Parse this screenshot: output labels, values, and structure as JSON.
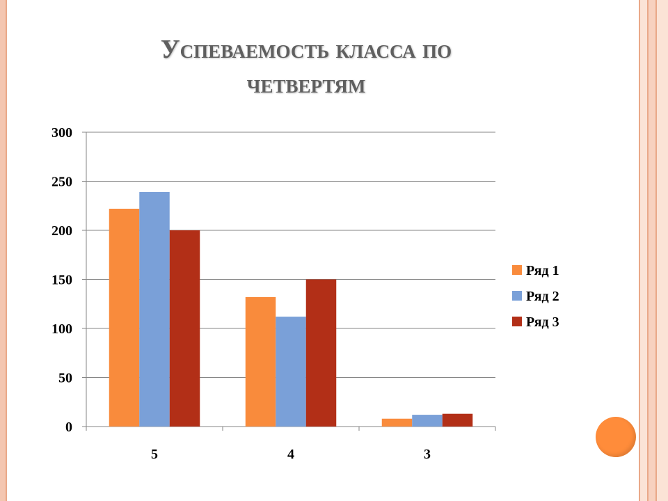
{
  "slide": {
    "title": "Успеваемость класса по четвертям",
    "accent_color": "#ff8c3a"
  },
  "chart_data": {
    "type": "bar",
    "title": "",
    "xlabel": "",
    "ylabel": "",
    "categories": [
      "5",
      "4",
      "3"
    ],
    "series": [
      {
        "name": "Ряд 1",
        "values": [
          222,
          132,
          8
        ],
        "color": "#f98b3c"
      },
      {
        "name": "Ряд 2",
        "values": [
          239,
          112,
          12
        ],
        "color": "#7aa0d8"
      },
      {
        "name": "Ряд 3",
        "values": [
          200,
          150,
          13
        ],
        "color": "#b22f17"
      }
    ],
    "ylim": [
      0,
      300
    ],
    "yticks": [
      "0",
      "50",
      "100",
      "150",
      "200",
      "250",
      "300"
    ],
    "grid": true,
    "legend_position": "right"
  }
}
